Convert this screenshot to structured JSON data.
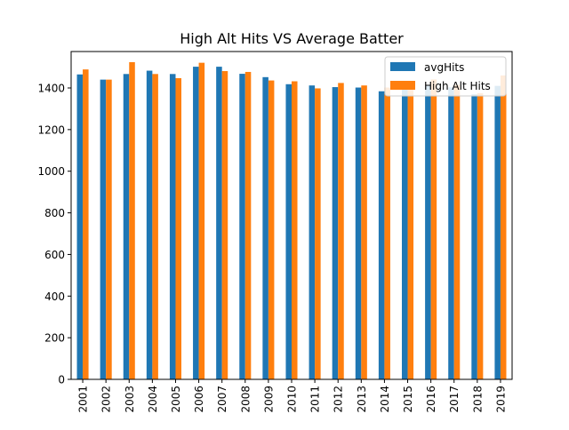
{
  "chart_data": {
    "type": "bar",
    "title": "High Alt Hits VS Average Batter",
    "xlabel": "",
    "ylabel": "",
    "categories": [
      "2001",
      "2002",
      "2003",
      "2004",
      "2005",
      "2006",
      "2007",
      "2008",
      "2009",
      "2010",
      "2011",
      "2012",
      "2013",
      "2014",
      "2015",
      "2016",
      "2017",
      "2018",
      "2019"
    ],
    "series": [
      {
        "name": "avgHits",
        "color": "#1f77b4",
        "values": [
          1465,
          1440,
          1467,
          1483,
          1467,
          1502,
          1502,
          1468,
          1452,
          1418,
          1412,
          1404,
          1402,
          1384,
          1407,
          1413,
          1403,
          1369,
          1410
        ]
      },
      {
        "name": "High Alt Hits",
        "color": "#ff7f0e",
        "values": [
          1489,
          1440,
          1524,
          1467,
          1447,
          1521,
          1481,
          1477,
          1436,
          1432,
          1398,
          1424,
          1412,
          1402,
          1420,
          1441,
          1415,
          1375,
          1460
        ]
      }
    ],
    "ylim": [
      0,
      1575
    ],
    "yticks": [
      0,
      200,
      400,
      600,
      800,
      1000,
      1200,
      1400
    ],
    "legend": "top-right",
    "grid": false
  }
}
